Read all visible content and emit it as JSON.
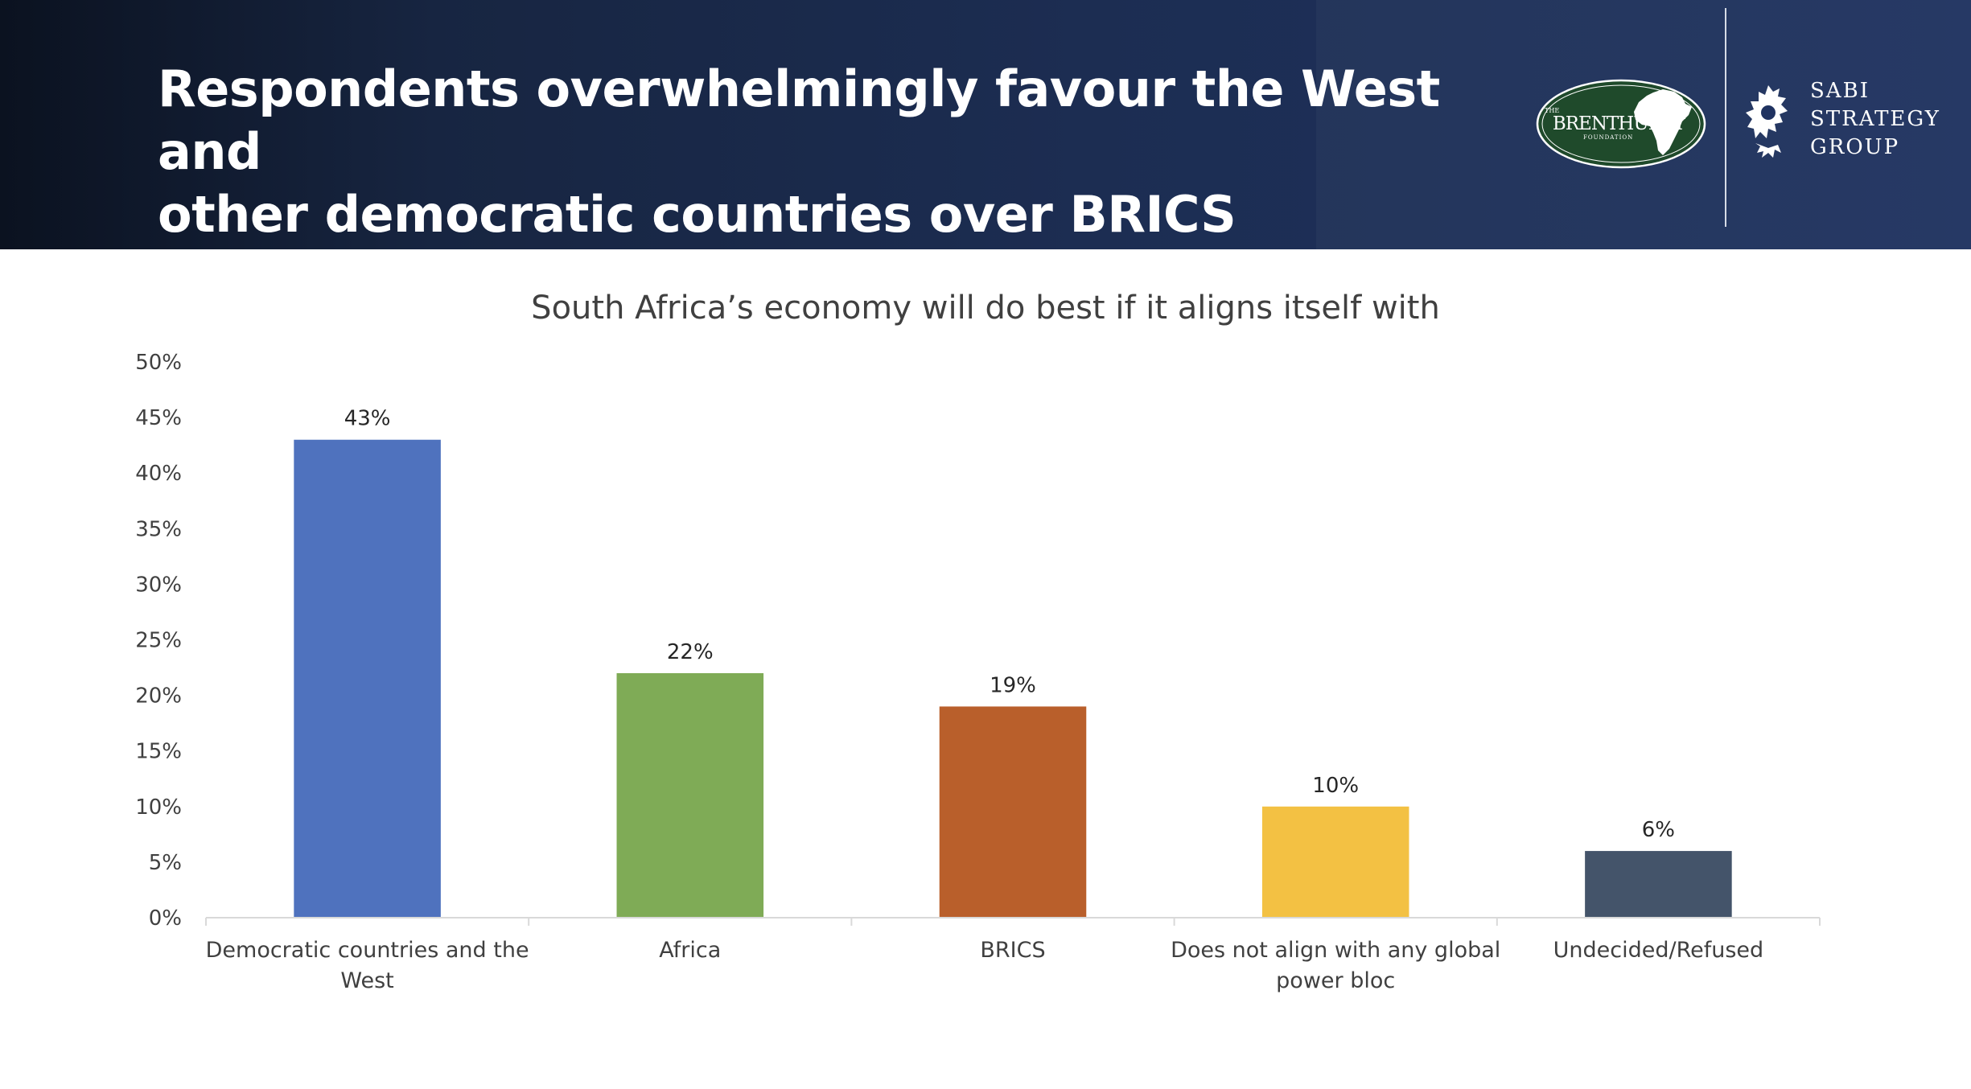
{
  "header": {
    "headline_line1": "Respondents overwhelmingly favour the West and",
    "headline_line2": "other democratic countries over BRICS",
    "brenthurst_logo": {
      "small_top": "THE",
      "name": "BRENTHURST",
      "small_bottom": "FOUNDATION",
      "icon": "africa-map-icon",
      "color": "#1f4a2b"
    },
    "sabi_logo": {
      "line1": "SABI",
      "line2": "STRATEGY",
      "line3": "GROUP",
      "icon": "lion-icon"
    }
  },
  "chart_data": {
    "type": "bar",
    "title": "South Africa’s economy will do best if it aligns itself with",
    "categories": [
      [
        "Democratic countries and the",
        "West"
      ],
      [
        "Africa"
      ],
      [
        "BRICS"
      ],
      [
        "Does not align with any global",
        "power bloc"
      ],
      [
        "Undecided/Refused"
      ]
    ],
    "values": [
      43,
      22,
      19,
      10,
      6
    ],
    "value_labels": [
      "43%",
      "22%",
      "19%",
      "10%",
      "6%"
    ],
    "colors": [
      "#4f72be",
      "#7fab56",
      "#b95f2b",
      "#f3c143",
      "#44546a"
    ],
    "y_ticks": [
      "0%",
      "5%",
      "10%",
      "15%",
      "20%",
      "25%",
      "30%",
      "35%",
      "40%",
      "45%",
      "50%"
    ],
    "ylim": [
      0,
      50
    ],
    "grid": false,
    "legend": "none"
  }
}
